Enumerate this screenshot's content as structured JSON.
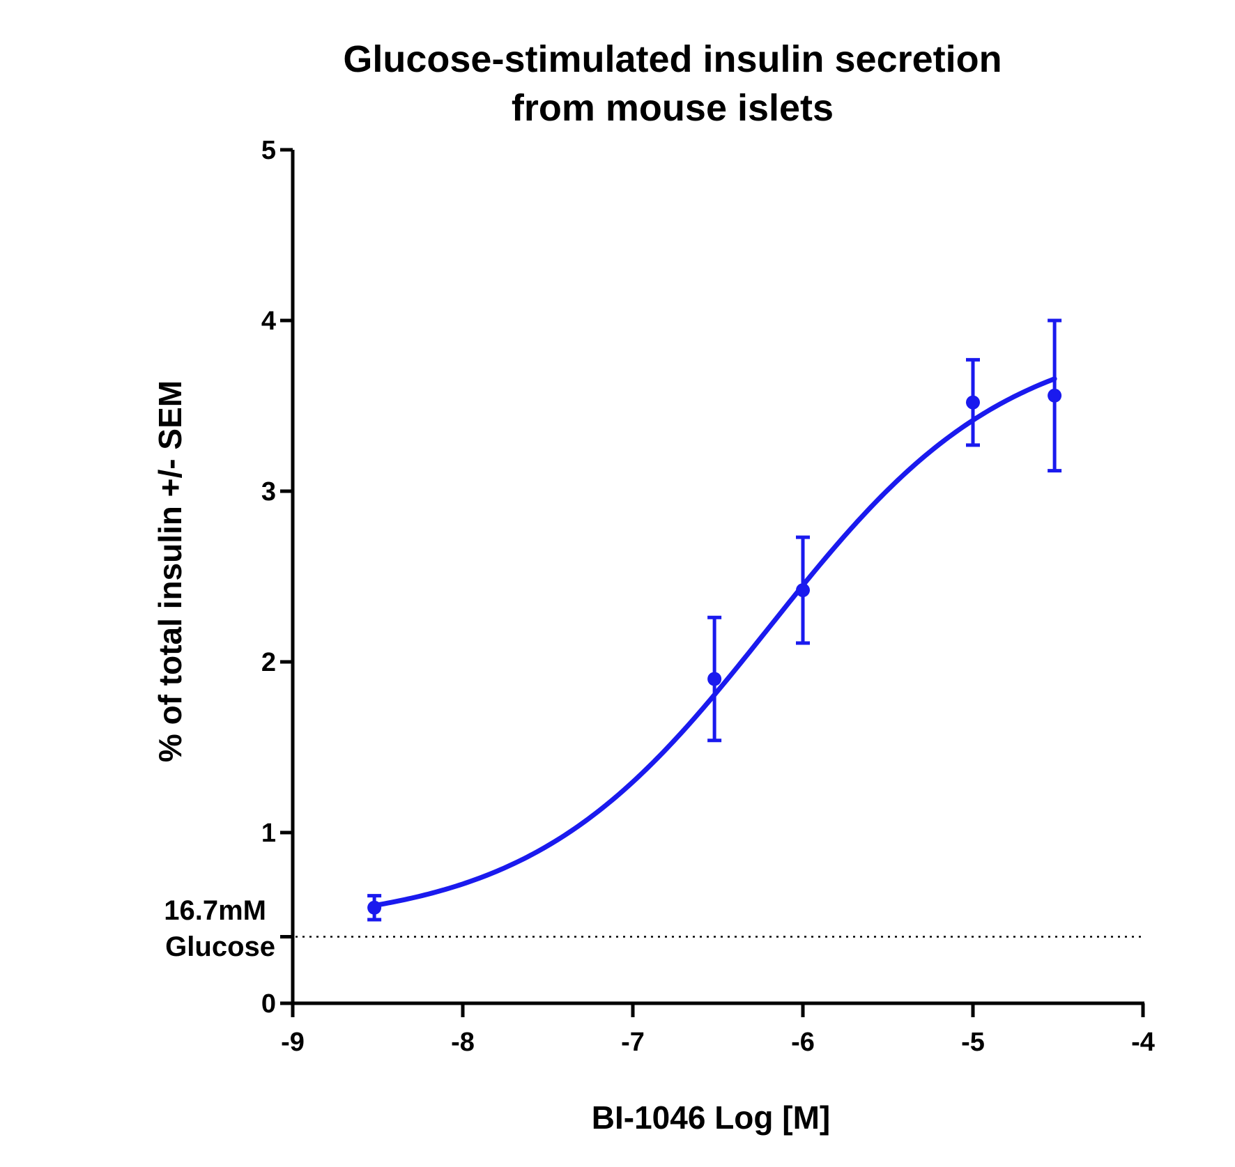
{
  "chart_data": {
    "type": "scatter",
    "title_lines": [
      "Glucose-stimulated insulin secretion",
      "from mouse islets"
    ],
    "xlabel": "BI-1046 Log [M]",
    "ylabel": "% of total insulin +/- SEM",
    "xlim": [
      -9,
      -4
    ],
    "ylim": [
      0,
      5
    ],
    "x_ticks": [
      -9,
      -8,
      -7,
      -6,
      -5,
      -4
    ],
    "x_tick_labels": [
      "-9",
      "-8",
      "-7",
      "-6",
      "-5",
      "-4"
    ],
    "y_ticks": [
      0,
      1,
      2,
      3,
      4,
      5
    ],
    "y_tick_labels": [
      "0",
      "1",
      "2",
      "3",
      "4",
      "5"
    ],
    "grid": false,
    "series_color": "#1a1aee",
    "points": [
      {
        "x": -8.52,
        "y": 0.56,
        "sem": 0.07
      },
      {
        "x": -6.52,
        "y": 1.9,
        "sem": 0.36
      },
      {
        "x": -6.0,
        "y": 2.42,
        "sem": 0.31
      },
      {
        "x": -5.0,
        "y": 3.52,
        "sem": 0.25
      },
      {
        "x": -4.52,
        "y": 3.56,
        "sem": 0.44
      }
    ],
    "fit": {
      "model": "four-parameter logistic",
      "bottom": 0.45,
      "top": 3.95,
      "log_ec50": -6.2,
      "hill_slope": 0.62,
      "x_range": [
        -8.52,
        -4.52
      ]
    },
    "reference_line": {
      "y": 0.39,
      "style": "dotted",
      "x_range": [
        -9,
        -4
      ],
      "label_lines": [
        "16.7mM",
        "Glucose"
      ]
    }
  }
}
